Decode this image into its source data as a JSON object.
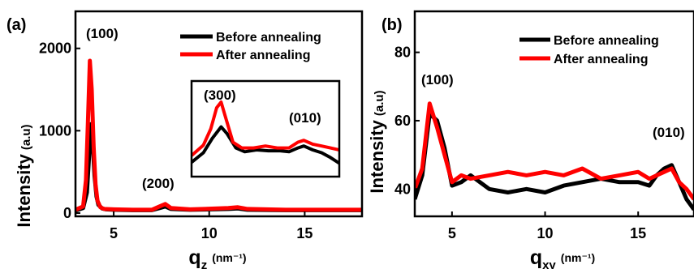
{
  "colors": {
    "before": "#000000",
    "after": "#ff0000",
    "axis": "#000000"
  },
  "chart_data": [
    {
      "type": "line",
      "panel_label": "(a)",
      "xlabel": "q",
      "xlabel_sub": "z",
      "xunit": "(nm⁻¹)",
      "ylabel": "Intensity",
      "yunit": "(a.u)",
      "xlim": [
        3,
        18
      ],
      "ylim": [
        -40,
        2450
      ],
      "xticks": [
        "5",
        "10",
        "15"
      ],
      "xtick_values": [
        5,
        10,
        15
      ],
      "yticks": [
        "0",
        "1000",
        "2000"
      ],
      "ytick_values": [
        0,
        1000,
        2000
      ],
      "legend": {
        "position": "top-right",
        "entries": [
          "Before annealing",
          "After annealing"
        ]
      },
      "annotations": [
        "(100)",
        "(200)"
      ],
      "series": [
        {
          "name": "Before annealing",
          "x": [
            3.0,
            3.4,
            3.6,
            3.7,
            3.8,
            3.9,
            4.0,
            4.1,
            4.2,
            4.4,
            4.6,
            5.0,
            6.0,
            7.0,
            7.4,
            7.7,
            8.0,
            9.0,
            11.0,
            11.5,
            12.0,
            14.0,
            16.0,
            18.0
          ],
          "y": [
            30,
            60,
            250,
            650,
            1080,
            850,
            450,
            200,
            100,
            55,
            45,
            40,
            35,
            35,
            60,
            80,
            50,
            40,
            50,
            55,
            40,
            35,
            35,
            35
          ]
        },
        {
          "name": "After annealing",
          "x": [
            3.0,
            3.4,
            3.55,
            3.65,
            3.75,
            3.85,
            3.95,
            4.05,
            4.15,
            4.3,
            4.5,
            5.0,
            6.0,
            7.0,
            7.4,
            7.7,
            8.0,
            9.0,
            11.0,
            11.5,
            12.0,
            14.0,
            16.0,
            18.0
          ],
          "y": [
            40,
            80,
            400,
            1100,
            1850,
            1500,
            800,
            350,
            150,
            70,
            50,
            45,
            40,
            40,
            80,
            110,
            60,
            45,
            60,
            70,
            50,
            40,
            40,
            40
          ]
        }
      ]
    },
    {
      "type": "line",
      "role": "inset",
      "annotations": [
        "(300)",
        "(010)"
      ],
      "series": [
        {
          "name": "Before annealing",
          "x": [
            0.0,
            0.08,
            0.14,
            0.2,
            0.24,
            0.3,
            0.36,
            0.44,
            0.52,
            0.6,
            0.66,
            0.72,
            0.76,
            0.82,
            0.88,
            0.94,
            1.0
          ],
          "y": [
            0.15,
            0.25,
            0.4,
            0.52,
            0.45,
            0.3,
            0.26,
            0.28,
            0.27,
            0.27,
            0.26,
            0.3,
            0.32,
            0.28,
            0.25,
            0.2,
            0.14
          ]
        },
        {
          "name": "After annealing",
          "x": [
            0.0,
            0.08,
            0.13,
            0.17,
            0.2,
            0.23,
            0.28,
            0.34,
            0.42,
            0.5,
            0.58,
            0.66,
            0.72,
            0.76,
            0.82,
            0.88,
            0.94,
            1.0
          ],
          "y": [
            0.22,
            0.33,
            0.5,
            0.72,
            0.78,
            0.62,
            0.36,
            0.3,
            0.3,
            0.32,
            0.3,
            0.3,
            0.36,
            0.38,
            0.34,
            0.32,
            0.3,
            0.28
          ]
        }
      ]
    },
    {
      "type": "line",
      "panel_label": "(b)",
      "xlabel": "q",
      "xlabel_sub": "xy",
      "xunit": "(nm⁻¹)",
      "ylabel": "Intensity",
      "yunit": "(a.u)",
      "xlim": [
        3,
        18
      ],
      "ylim": [
        32,
        92
      ],
      "xticks": [
        "5",
        "10",
        "15"
      ],
      "xtick_values": [
        5,
        10,
        15
      ],
      "yticks": [
        "40",
        "60",
        "80"
      ],
      "ytick_values": [
        40,
        60,
        80
      ],
      "legend": {
        "position": "top-right",
        "entries": [
          "Before annealing",
          "After annealing"
        ]
      },
      "annotations": [
        "(100)",
        "(010)"
      ],
      "series": [
        {
          "name": "Before annealing",
          "x": [
            3.0,
            3.4,
            3.8,
            4.2,
            4.6,
            5.0,
            5.5,
            6.0,
            7.0,
            8.0,
            9.0,
            10.0,
            11.0,
            12.0,
            13.0,
            14.0,
            15.0,
            15.6,
            16.0,
            16.4,
            16.8,
            17.2,
            17.6,
            18.0
          ],
          "y": [
            37,
            44,
            62,
            60,
            52,
            41,
            42,
            44,
            40,
            39,
            40,
            39,
            41,
            42,
            43,
            42,
            42,
            41,
            44,
            46,
            47,
            42,
            37,
            34
          ]
        },
        {
          "name": "After annealing",
          "x": [
            3.0,
            3.4,
            3.8,
            4.2,
            4.6,
            5.0,
            5.5,
            6.0,
            7.0,
            8.0,
            9.0,
            10.0,
            11.0,
            12.0,
            13.0,
            14.0,
            15.0,
            15.6,
            16.0,
            16.4,
            16.8,
            17.2,
            17.6,
            18.0
          ],
          "y": [
            40,
            46,
            65,
            58,
            50,
            42,
            44,
            43,
            44,
            45,
            44,
            45,
            44,
            46,
            43,
            44,
            45,
            43,
            44,
            45,
            46,
            42,
            40,
            37
          ]
        }
      ]
    }
  ]
}
